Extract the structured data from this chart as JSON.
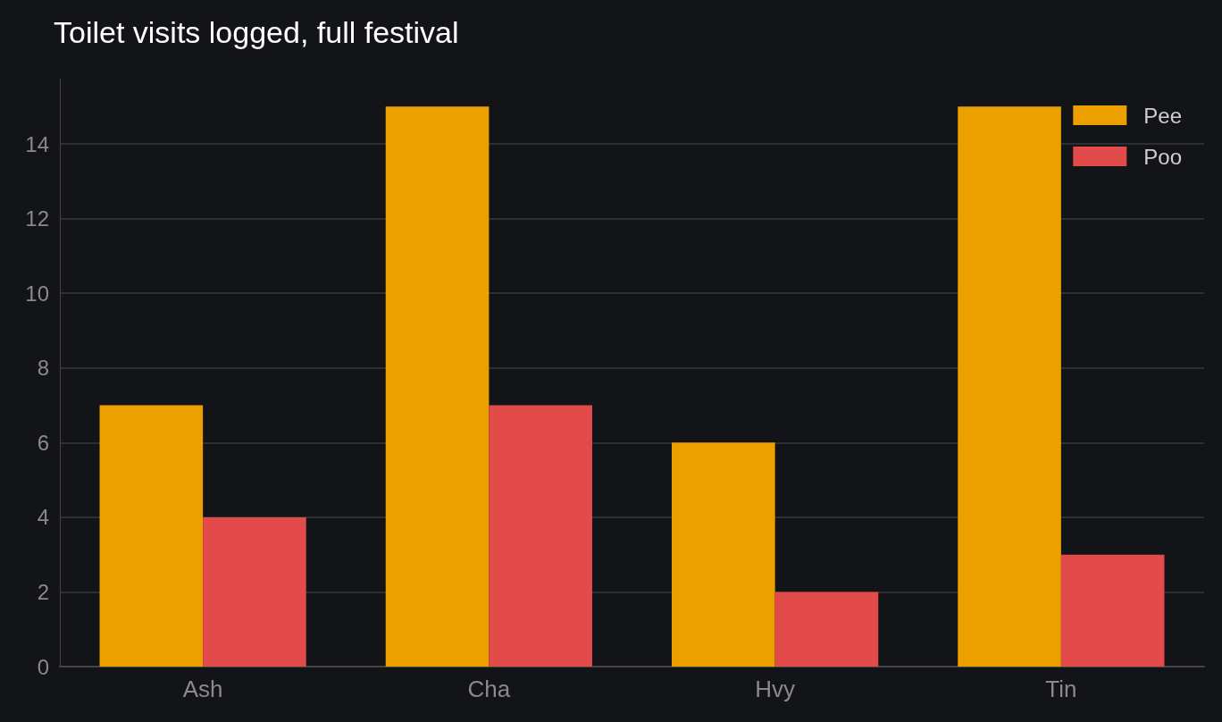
{
  "chart_data": {
    "type": "bar",
    "title": "Toilet visits logged, full festival",
    "categories": [
      "Ash",
      "Cha",
      "Hvy",
      "Tin"
    ],
    "series": [
      {
        "name": "Pee",
        "color": "#eba000",
        "values": [
          7,
          15,
          6,
          15
        ]
      },
      {
        "name": "Poo",
        "color": "#e34b4b",
        "values": [
          4,
          7,
          2,
          3
        ]
      }
    ],
    "ylim": [
      0,
      15.75
    ],
    "yticks": [
      0,
      2,
      4,
      6,
      8,
      10,
      12,
      14
    ],
    "grid": "y",
    "legend": "top right"
  }
}
